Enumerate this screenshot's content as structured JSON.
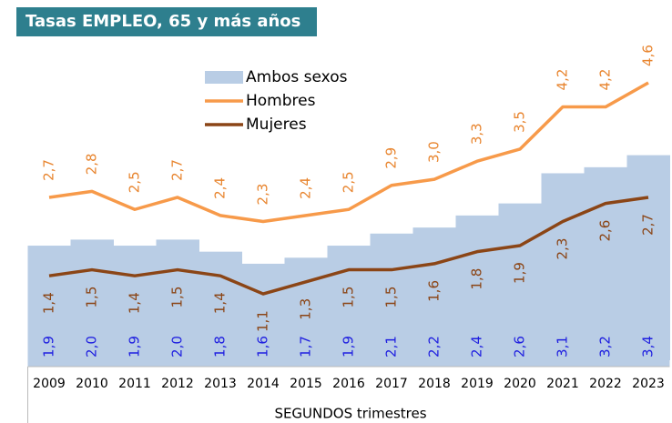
{
  "chart_data": {
    "type": "line",
    "title": "Tasas EMPLEO, 65 y más años",
    "x_label": "SEGUNDOS trimestres",
    "categories": [
      "2009",
      "2010",
      "2011",
      "2012",
      "2013",
      "2014",
      "2015",
      "2016",
      "2017",
      "2018",
      "2019",
      "2020",
      "2021",
      "2022",
      "2023"
    ],
    "ylim": [
      0,
      5
    ],
    "legend": "top-left",
    "series": [
      {
        "name": "Ambos sexos",
        "type": "bar",
        "color": "#b9cde5",
        "label_color": "#1f1fe0",
        "values": [
          1.9,
          2.0,
          1.9,
          2.0,
          1.8,
          1.6,
          1.7,
          1.9,
          2.1,
          2.2,
          2.4,
          2.6,
          3.1,
          3.2,
          3.4
        ],
        "value_labels": [
          "1,9",
          "2,0",
          "1,9",
          "2,0",
          "1,8",
          "1,6",
          "1,7",
          "1,9",
          "2,1",
          "2,2",
          "2,4",
          "2,6",
          "3,1",
          "3,2",
          "3,4"
        ]
      },
      {
        "name": "Hombres",
        "type": "line",
        "color": "#f79a4a",
        "label_color": "#e8852f",
        "values": [
          2.7,
          2.8,
          2.5,
          2.7,
          2.4,
          2.3,
          2.4,
          2.5,
          2.9,
          3.0,
          3.3,
          3.5,
          4.2,
          4.2,
          4.6
        ],
        "value_labels": [
          "2,7",
          "2,8",
          "2,5",
          "2,7",
          "2,4",
          "2,3",
          "2,4",
          "2,5",
          "2,9",
          "3,0",
          "3,3",
          "3,5",
          "4,2",
          "4,2",
          "4,6"
        ]
      },
      {
        "name": "Mujeres",
        "type": "line",
        "color": "#8b4516",
        "label_color": "#8b4516",
        "values": [
          1.4,
          1.5,
          1.4,
          1.5,
          1.4,
          1.1,
          1.3,
          1.5,
          1.5,
          1.6,
          1.8,
          1.9,
          2.3,
          2.6,
          2.7
        ],
        "value_labels": [
          "1,4",
          "1,5",
          "1,4",
          "1,5",
          "1,4",
          "1,1",
          "1,3",
          "1,5",
          "1,5",
          "1,6",
          "1,8",
          "1,9",
          "2,3",
          "2,6",
          "2,7"
        ]
      }
    ]
  }
}
